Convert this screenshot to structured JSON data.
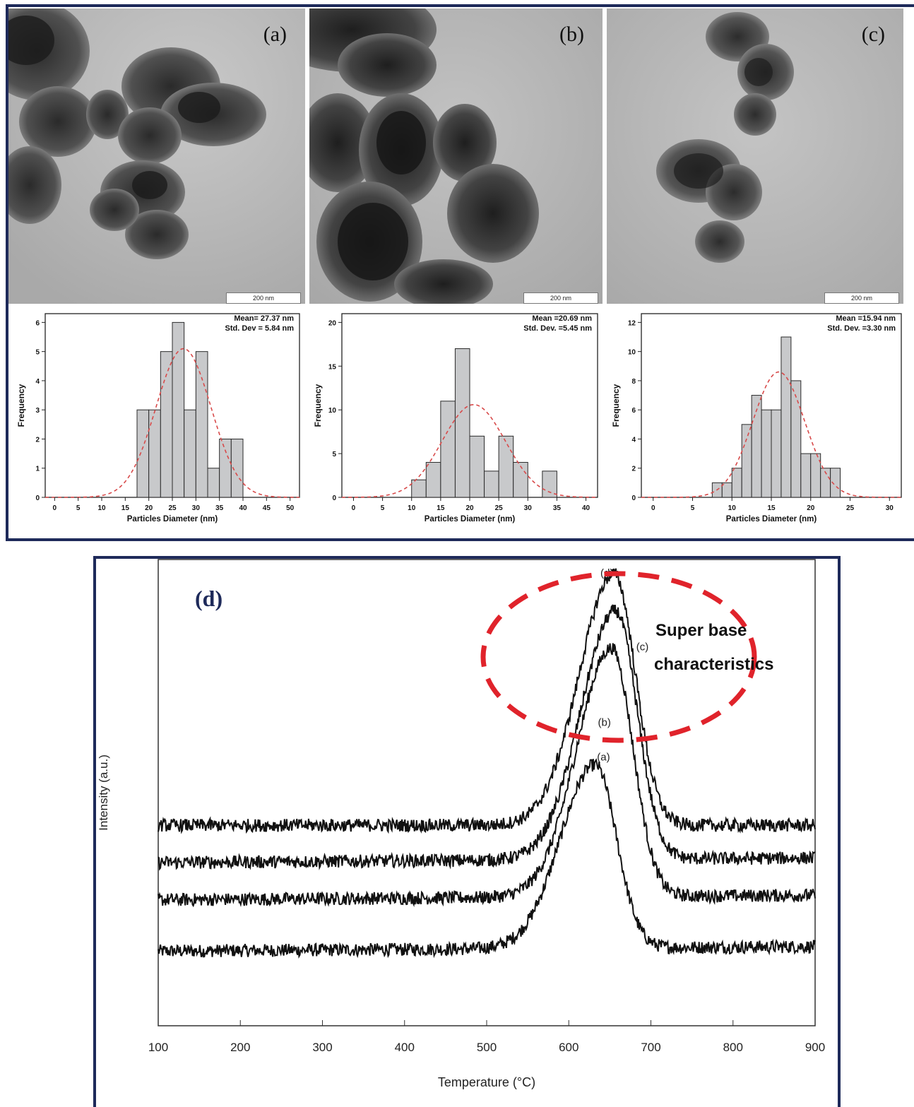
{
  "colors": {
    "frame": "#1e2a5a",
    "bar_fill": "#c8c9cb",
    "bar_stroke": "#2b2b2b",
    "fit_curve": "#d84a4a",
    "highlight_ellipse": "#e0232b",
    "trace": "#111111"
  },
  "tem_panels": [
    {
      "letter": "(a)",
      "scale_label": "200 nm"
    },
    {
      "letter": "(b)",
      "scale_label": "200 nm"
    },
    {
      "letter": "(c)",
      "scale_label": "200 nm"
    }
  ],
  "chart_data": [
    {
      "type": "bar",
      "panel": "a",
      "xlabel": "Particles Diameter (nm)",
      "ylabel": "Frequency",
      "xlim": [
        -2,
        52
      ],
      "ylim": [
        0,
        6.3
      ],
      "xticks": [
        0,
        5,
        10,
        15,
        20,
        25,
        30,
        35,
        40,
        45,
        50
      ],
      "yticks": [
        0,
        1,
        2,
        3,
        4,
        5,
        6
      ],
      "bin_width": 2.5,
      "bin_starts": [
        17.5,
        20,
        22.5,
        25,
        27.5,
        30,
        32.5,
        35,
        37.5
      ],
      "values": [
        3,
        3,
        5,
        6,
        3,
        5,
        1,
        2,
        2
      ],
      "stats_line1": "Mean= 27.37 nm",
      "stats_line2": "Std. Dev = 5.84 nm",
      "fit": {
        "mean": 27.37,
        "sd": 5.84,
        "peak": 5.1
      }
    },
    {
      "type": "bar",
      "panel": "b",
      "xlabel": "Particles Diameter (nm)",
      "ylabel": "Frequency",
      "xlim": [
        -2,
        42
      ],
      "ylim": [
        0,
        21
      ],
      "xticks": [
        0,
        5,
        10,
        15,
        20,
        25,
        30,
        35,
        40
      ],
      "yticks": [
        0,
        5,
        10,
        15,
        20
      ],
      "bin_width": 2.5,
      "bin_starts": [
        10,
        12.5,
        15,
        17.5,
        20,
        22.5,
        25,
        27.5,
        30,
        32.5
      ],
      "values": [
        2,
        4,
        11,
        17,
        7,
        3,
        7,
        4,
        0,
        3
      ],
      "stats_line1": "Mean =20.69 nm",
      "stats_line2": "Std. Dev. =5.45 nm",
      "fit": {
        "mean": 20.69,
        "sd": 5.45,
        "peak": 10.6
      }
    },
    {
      "type": "bar",
      "panel": "c",
      "xlabel": "Particles Diameter (nm)",
      "ylabel": "Frequency",
      "xlim": [
        -1.5,
        31.5
      ],
      "ylim": [
        0,
        12.6
      ],
      "xticks": [
        0,
        5,
        10,
        15,
        20,
        25,
        30
      ],
      "yticks": [
        0,
        2,
        4,
        6,
        8,
        10,
        12
      ],
      "bin_width": 1.25,
      "bin_starts": [
        7.5,
        8.75,
        10,
        11.25,
        12.5,
        13.75,
        15,
        16.25,
        17.5,
        18.75,
        20,
        21.25,
        22.5
      ],
      "values": [
        1,
        1,
        2,
        5,
        7,
        6,
        6,
        11,
        8,
        3,
        3,
        2,
        2
      ],
      "stats_line1": "Mean =15.94 nm",
      "stats_line2": "Std. Dev. =3.30 nm",
      "fit": {
        "mean": 15.94,
        "sd": 3.3,
        "peak": 8.6
      }
    },
    {
      "type": "line",
      "panel": "d",
      "title": "(d)",
      "xlabel": "Temperature (°C)",
      "ylabel": "Intensity (a.u.)",
      "xlim": [
        100,
        900
      ],
      "ylim": [
        0,
        1
      ],
      "xticks": [
        100,
        200,
        300,
        400,
        500,
        600,
        700,
        800,
        900
      ],
      "annotation": [
        "Super base",
        "characteristics"
      ],
      "series": [
        {
          "name": "(a)",
          "peak_temp": 632,
          "baseline_left": 0.16,
          "baseline_right": 0.17,
          "peak": 0.56
        },
        {
          "name": "(b)",
          "peak_temp": 652,
          "baseline_left": 0.27,
          "baseline_right": 0.28,
          "peak": 0.81
        },
        {
          "name": "(c)",
          "peak_temp": 657,
          "baseline_left": 0.35,
          "baseline_right": 0.36,
          "peak": 0.89
        },
        {
          "name": "(d)",
          "peak_temp": 655,
          "baseline_left": 0.43,
          "baseline_right": 0.43,
          "peak": 0.97
        }
      ]
    }
  ]
}
